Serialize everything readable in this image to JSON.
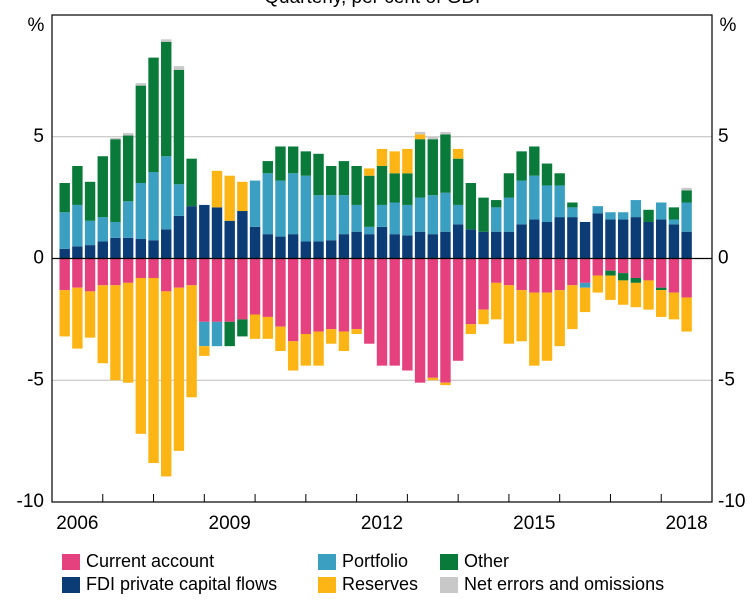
{
  "chart_data": {
    "type": "bar",
    "stacked": true,
    "title": "Quarterly, per cent of GDP",
    "ylabel": "%",
    "y2label": "%",
    "x": [
      2006.25,
      2006.5,
      2006.75,
      2007,
      2007.25,
      2007.5,
      2007.75,
      2008,
      2008.25,
      2008.5,
      2008.75,
      2009,
      2009.25,
      2009.5,
      2009.75,
      2010,
      2010.25,
      2010.5,
      2010.75,
      2011,
      2011.25,
      2011.5,
      2011.75,
      2012,
      2012.25,
      2012.5,
      2012.75,
      2013,
      2013.25,
      2013.5,
      2013.75,
      2014,
      2014.25,
      2014.5,
      2014.75,
      2015,
      2015.25,
      2015.5,
      2015.75,
      2016,
      2016.25,
      2016.5,
      2016.75,
      2017,
      2017.25,
      2017.5,
      2017.75,
      2018,
      2018.25,
      2018.5
    ],
    "xlim": [
      2006,
      2019
    ],
    "xticks": [
      2006,
      2009,
      2012,
      2015,
      2018
    ],
    "ylim": [
      -10,
      10
    ],
    "yticks": [
      -10,
      -5,
      0,
      5
    ],
    "y2lim": [
      -10,
      10
    ],
    "y2ticks": [
      -10,
      -5,
      0,
      5
    ],
    "grid": true,
    "legend": "bottom",
    "series": [
      {
        "name": "Current account",
        "color": "#e5417f",
        "values": [
          -1.3,
          -1.2,
          -1.35,
          -1.1,
          -1.1,
          -1.0,
          -0.8,
          -0.8,
          -1.35,
          -1.2,
          -1.1,
          -2.6,
          -2.6,
          -2.6,
          -2.5,
          -2.3,
          -2.4,
          -2.8,
          -3.4,
          -3.1,
          -3.0,
          -2.9,
          -3.0,
          -2.9,
          -3.5,
          -4.4,
          -4.4,
          -4.6,
          -5.1,
          -4.9,
          -5.1,
          -4.2,
          -2.7,
          -2.1,
          -1.0,
          -1.1,
          -1.3,
          -1.4,
          -1.4,
          -1.3,
          -1.1,
          -1.0,
          -0.7,
          -0.5,
          -0.6,
          -0.8,
          -0.9,
          -1.2,
          -1.4,
          -1.6
        ]
      },
      {
        "name": "Portfolio",
        "color": "#3a9fc1",
        "values": [
          1.5,
          1.7,
          1.0,
          1.0,
          0.65,
          1.5,
          2.3,
          2.8,
          3.0,
          1.3,
          0,
          -1.0,
          -1.0,
          0,
          0,
          1.9,
          2.5,
          2.3,
          2.5,
          2.7,
          1.9,
          1.85,
          1.6,
          1.1,
          0.3,
          0.9,
          1.3,
          1.25,
          1.4,
          1.6,
          1.6,
          0.8,
          0,
          0,
          1.0,
          1.4,
          1.8,
          1.8,
          1.5,
          1.3,
          0.4,
          -0.2,
          0.3,
          0.3,
          0.3,
          0.7,
          0,
          0.7,
          0.2,
          1.2
        ]
      },
      {
        "name": "Other",
        "color": "#0a7a3b",
        "values": [
          1.2,
          1.6,
          1.6,
          2.5,
          3.4,
          2.7,
          4.0,
          4.7,
          4.7,
          4.7,
          1.95,
          0,
          0,
          -1.0,
          -0.7,
          0,
          0.5,
          1.4,
          1.1,
          1.0,
          1.7,
          1.2,
          1.4,
          1.6,
          2.1,
          1.6,
          1.2,
          1.3,
          2.4,
          2.3,
          2.4,
          1.9,
          1.9,
          1.4,
          0.3,
          1.0,
          1.2,
          1.2,
          0.9,
          0.5,
          0.2,
          0,
          0,
          -0.2,
          -0.3,
          -0.2,
          0.5,
          -0.1,
          0.5,
          0.5
        ]
      },
      {
        "name": "FDI private capital flows",
        "color": "#0b3c75",
        "values": [
          0.4,
          0.5,
          0.55,
          0.7,
          0.85,
          0.85,
          0.8,
          0.75,
          1.2,
          1.75,
          2.15,
          2.2,
          2.1,
          1.55,
          1.95,
          1.3,
          1.0,
          0.9,
          1.0,
          0.7,
          0.7,
          0.75,
          1.0,
          1.1,
          1.0,
          1.3,
          1.0,
          0.95,
          1.1,
          1.0,
          1.1,
          1.4,
          1.2,
          1.1,
          1.1,
          1.1,
          1.4,
          1.6,
          1.5,
          1.7,
          1.7,
          1.5,
          1.85,
          1.6,
          1.6,
          1.7,
          1.5,
          1.6,
          1.4,
          1.1
        ]
      },
      {
        "name": "Reserves",
        "color": "#fdb515",
        "values": [
          -1.9,
          -2.5,
          -1.9,
          -3.2,
          -3.9,
          -4.1,
          -6.4,
          -7.6,
          -7.6,
          -6.7,
          -4.6,
          -0.4,
          1.5,
          1.85,
          1.2,
          -1.0,
          -0.9,
          -1.0,
          -1.2,
          -1.3,
          -1.4,
          -0.6,
          -0.8,
          -0.2,
          0.3,
          0.7,
          0.9,
          1.0,
          0.2,
          -0.1,
          -0.1,
          0.4,
          -0.4,
          -0.6,
          -1.5,
          -2.4,
          -2.1,
          -3.0,
          -2.8,
          -2.3,
          -1.8,
          -1.0,
          -0.7,
          -1.0,
          -1.0,
          -1.0,
          -1.2,
          -1.1,
          -1.1,
          -1.4
        ]
      },
      {
        "name": "Net errors and omissions",
        "color": "#c8c8c8",
        "values": [
          0,
          0,
          0,
          0,
          0.05,
          0.1,
          0.1,
          0,
          0.1,
          0.15,
          0,
          0,
          0,
          0,
          0,
          0,
          0,
          0,
          0,
          0,
          0,
          0,
          0,
          0,
          0,
          0,
          0,
          0,
          0.1,
          0.1,
          0.1,
          0,
          0,
          0,
          0,
          0,
          0,
          0,
          0,
          0,
          0,
          0,
          0,
          0,
          0,
          0,
          0,
          0,
          0,
          0.1
        ]
      }
    ]
  }
}
